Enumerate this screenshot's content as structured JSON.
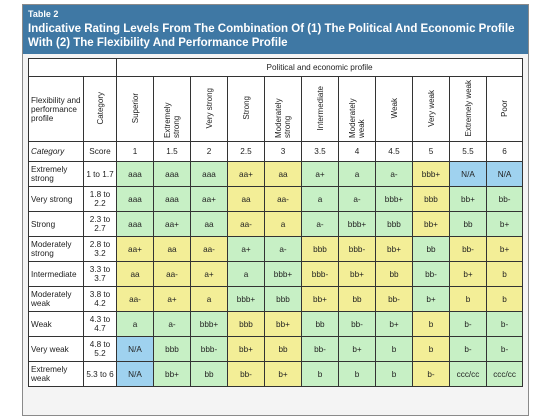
{
  "table_label": "Table 2",
  "title": "Indicative Rating Levels From The Combination Of (1) The Political And Economic Profile With (2) The Flexibility And Performance Profile",
  "group_header": "Political and economic profile",
  "corner_label": "Flexibility and performance profile",
  "category_header": "Category",
  "columns": [
    "Superior",
    "Extremely strong",
    "Very strong",
    "Strong",
    "Moderately strong",
    "Intermediate",
    "Moderately weak",
    "Weak",
    "Very weak",
    "Extremely weak",
    "Poor"
  ],
  "score_row": {
    "label": "Category",
    "score_label": "Score",
    "scores": [
      "1",
      "1.5",
      "2",
      "2.5",
      "3",
      "3.5",
      "4",
      "4.5",
      "5",
      "5.5",
      "6"
    ]
  },
  "rows": [
    {
      "label": "Extremely strong",
      "score": "1 to 1.7",
      "cells": [
        "aaa",
        "aaa",
        "aaa",
        "aa+",
        "aa",
        "a+",
        "a",
        "a-",
        "bbb+",
        "N/A",
        "N/A"
      ],
      "colors": [
        "g",
        "g",
        "g",
        "y",
        "y",
        "g",
        "g",
        "g",
        "y",
        "b",
        "b"
      ]
    },
    {
      "label": "Very strong",
      "score": "1.8 to 2.2",
      "cells": [
        "aaa",
        "aaa",
        "aa+",
        "aa",
        "aa-",
        "a",
        "a-",
        "bbb+",
        "bbb",
        "bb+",
        "bb-"
      ],
      "colors": [
        "g",
        "g",
        "g",
        "y",
        "y",
        "g",
        "g",
        "g",
        "y",
        "g",
        "g"
      ]
    },
    {
      "label": "Strong",
      "score": "2.3 to 2.7",
      "cells": [
        "aaa",
        "aa+",
        "aa",
        "aa-",
        "a",
        "a-",
        "bbb+",
        "bbb",
        "bb+",
        "bb",
        "b+"
      ],
      "colors": [
        "g",
        "g",
        "g",
        "y",
        "y",
        "g",
        "g",
        "g",
        "y",
        "g",
        "g"
      ]
    },
    {
      "label": "Moderately strong",
      "score": "2.8 to 3.2",
      "cells": [
        "aa+",
        "aa",
        "aa-",
        "a+",
        "a-",
        "bbb",
        "bbb-",
        "bb+",
        "bb",
        "bb-",
        "b+"
      ],
      "colors": [
        "y",
        "y",
        "y",
        "g",
        "g",
        "y",
        "y",
        "y",
        "g",
        "y",
        "y"
      ]
    },
    {
      "label": "Intermediate",
      "score": "3.3 to 3.7",
      "cells": [
        "aa",
        "aa-",
        "a+",
        "a",
        "bbb+",
        "bbb-",
        "bb+",
        "bb",
        "bb-",
        "b+",
        "b"
      ],
      "colors": [
        "y",
        "y",
        "y",
        "g",
        "g",
        "y",
        "y",
        "y",
        "g",
        "y",
        "y"
      ]
    },
    {
      "label": "Moderately weak",
      "score": "3.8 to 4.2",
      "cells": [
        "aa-",
        "a+",
        "a",
        "bbb+",
        "bbb",
        "bb+",
        "bb",
        "bb-",
        "b+",
        "b",
        "b"
      ],
      "colors": [
        "y",
        "y",
        "y",
        "g",
        "g",
        "y",
        "y",
        "y",
        "g",
        "y",
        "y"
      ]
    },
    {
      "label": "Weak",
      "score": "4.3 to 4.7",
      "cells": [
        "a",
        "a-",
        "bbb+",
        "bbb",
        "bb+",
        "bb",
        "bb-",
        "b+",
        "b",
        "b-",
        "b-"
      ],
      "colors": [
        "g",
        "g",
        "g",
        "y",
        "y",
        "g",
        "g",
        "g",
        "y",
        "g",
        "g"
      ]
    },
    {
      "label": "Very weak",
      "score": "4.8 to 5.2",
      "cells": [
        "N/A",
        "bbb",
        "bbb-",
        "bb+",
        "bb",
        "bb-",
        "b+",
        "b",
        "b",
        "b-",
        "b-"
      ],
      "colors": [
        "b",
        "g",
        "g",
        "y",
        "y",
        "g",
        "g",
        "g",
        "y",
        "g",
        "g"
      ]
    },
    {
      "label": "Extremely weak",
      "score": "5.3 to 6",
      "cells": [
        "N/A",
        "bb+",
        "bb",
        "bb-",
        "b+",
        "b",
        "b",
        "b",
        "b-",
        "ccc/cc",
        "ccc/cc"
      ],
      "colors": [
        "b",
        "g",
        "g",
        "y",
        "y",
        "g",
        "g",
        "g",
        "y",
        "g",
        "g"
      ]
    }
  ]
}
